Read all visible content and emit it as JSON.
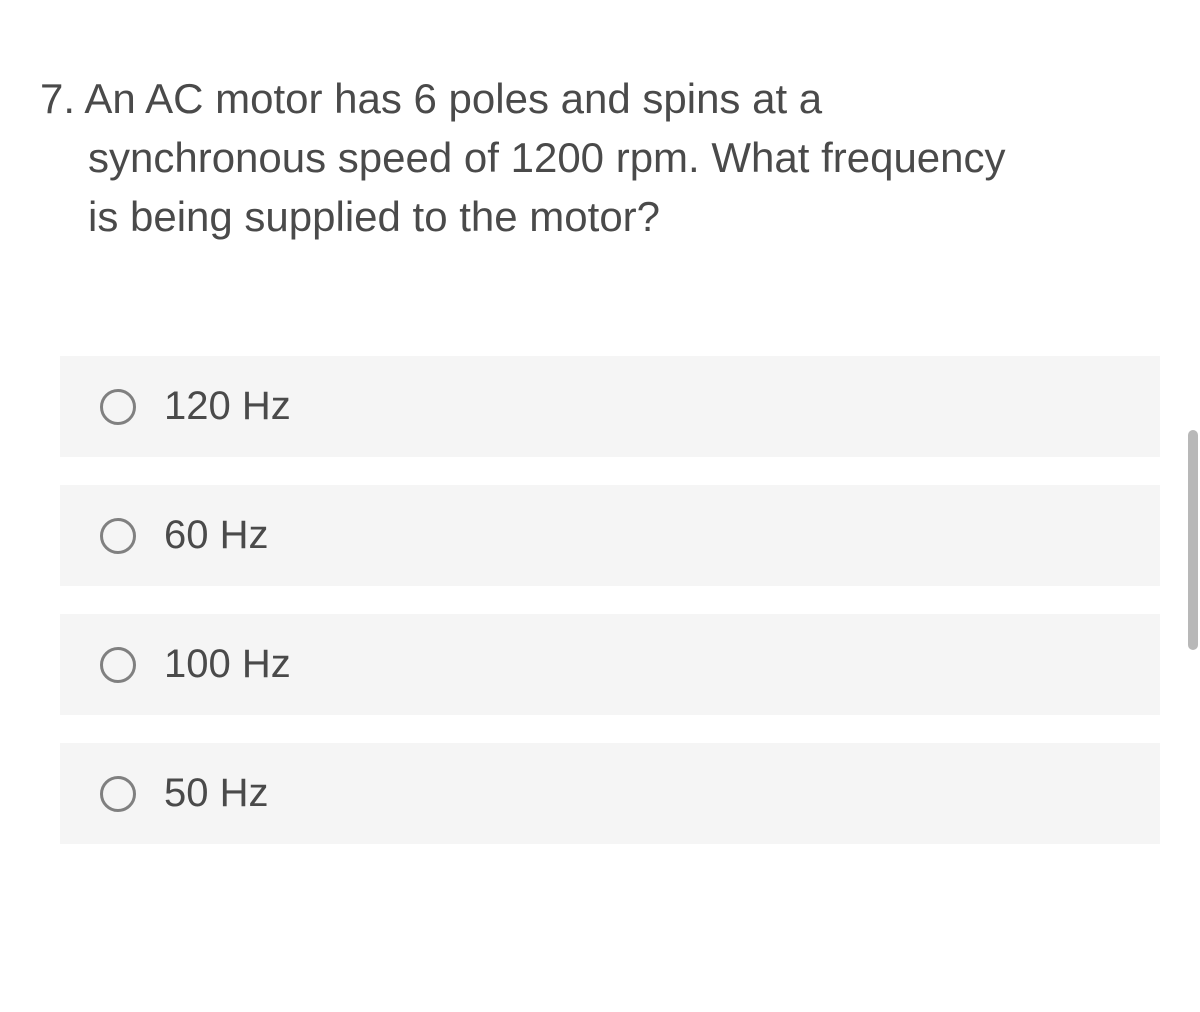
{
  "question": {
    "number": "7.",
    "line1": "7. An AC motor has 6 poles and spins at a",
    "line2": "synchronous speed of 1200 rpm. What frequency",
    "line3": "is being supplied to the motor?"
  },
  "options": [
    {
      "label": "120 Hz"
    },
    {
      "label": "60 Hz"
    },
    {
      "label": "100 Hz"
    },
    {
      "label": "50 Hz"
    }
  ],
  "colors": {
    "background": "#ffffff",
    "option_bg": "#f5f5f5",
    "text": "#4a4a4a",
    "radio_border": "#808080",
    "scrollbar": "#b8b8b8"
  }
}
